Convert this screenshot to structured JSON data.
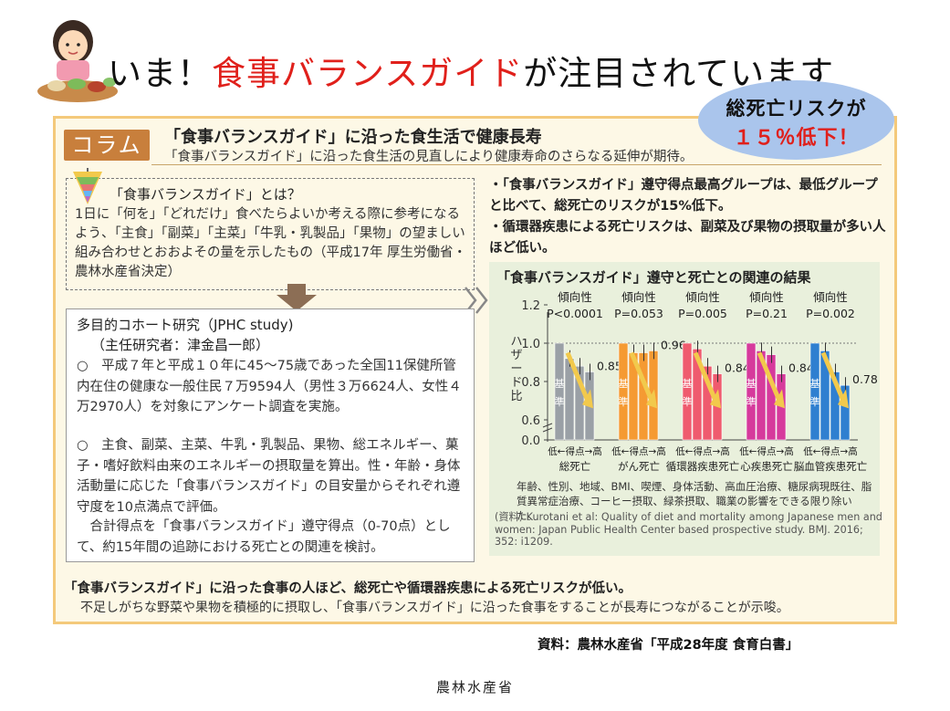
{
  "header": {
    "title_prefix": "いま！",
    "title_highlight": "食事バランスガイド",
    "title_suffix": "が注目されています"
  },
  "bubble": {
    "line1": "総死亡リスクが",
    "line2": "１５％低下！"
  },
  "column": {
    "tag": "コラム",
    "title": "「食事バランスガイド」に沿った食生活で健康長寿",
    "subtitle": "「食事バランスガイド」に沿った食生活の見直しにより健康寿命のさらなる延伸が期待。"
  },
  "definition": {
    "heading": "「食事バランスガイド」とは？",
    "text": "1日に「何を」「どれだけ」食べたらよいか考える際に参考になるよう、「主食」「副菜」「主菜」「牛乳・乳製品」「果物」の望ましい組み合わせとおおよその量を示したもの（平成17年 厚生労働省・農林水産省決定）"
  },
  "study": {
    "title": "多目的コホート研究（JPHC study)",
    "pi": "（主任研究者：津金昌一郎）",
    "p1": "○　平成７年と平成１０年に45～75歳であった全国11保健所管内在住の健康な一般住民７万9594人（男性３万6624人、女性４万2970人）を対象にアンケート調査を実施。",
    "p2": "○　主食、副菜、主菜、牛乳・乳製品、果物、総エネルギー、菓子・嗜好飲料由来のエネルギーの摂取量を算出。性・年齢・身体活動量に応じた「食事バランスガイド」の目安量からそれぞれ遵守度を10点満点で評価。",
    "p3": "　合計得点を「食事バランスガイド」遵守得点（0-70点）として、約15年間の追跡における死亡との関連を検討。"
  },
  "bullets": [
    "・「食事バランスガイド」遵守得点最高グループは、最低グループと比べて、総死亡のリスクが15%低下。",
    "・循環器疾患による死亡リスクは、副菜及び果物の摂取量が多い人ほど低い。"
  ],
  "chart_title": "「食事バランスガイド」遵守と死亡との関連の結果",
  "adjust_note": "年齢、性別、地域、BMI、喫煙、身体活動、高血圧治療、糖尿病現既往、脂質異常症治療、コーヒー摂取、緑茶摂取、職業の影響をできる限り除いた。",
  "source_note": "(資料) Kurotani et al: Quality of diet and mortality among Japanese men and women: Japan Public Health Center based prospective study. BMJ. 2016; 352: i1209.",
  "conclusion": {
    "heading": "「食事バランスガイド」に沿った食事の人ほど、総死亡や循環器疾患による死亡リスクが低い。",
    "text": "不足しがちな野菜や果物を積極的に摂取し、「食事バランスガイド」に沿った食事をすることが長寿につながることが示唆。"
  },
  "doc_source": "資料：農林水産省「平成28年度 食育白書」",
  "footer": "農林水産省",
  "chart_data": {
    "type": "bar",
    "ylabel": "ハザード比",
    "ylim": [
      0.0,
      1.2
    ],
    "yticks": [
      "0.0",
      "0.6",
      "0.8",
      "1.0",
      "1.2"
    ],
    "reference_line": 1.0,
    "baseline_label": "基準",
    "trend_label": "傾向性",
    "xtick_label": "低←得点→高",
    "groups": [
      {
        "name": "総死亡",
        "p_value": "P<0.0001",
        "color": "#9aa0a6",
        "values": [
          1.0,
          0.92,
          0.88,
          0.85
        ],
        "label": "0.85"
      },
      {
        "name": "がん死亡",
        "p_value": "P=0.053",
        "color": "#f59a32",
        "values": [
          1.0,
          0.95,
          0.95,
          0.96
        ],
        "label": "0.96"
      },
      {
        "name": "循環器疾患死亡",
        "p_value": "P=0.005",
        "color": "#ef5b6e",
        "values": [
          1.0,
          0.97,
          0.88,
          0.84
        ],
        "label": "0.84"
      },
      {
        "name": "心疾患死亡",
        "p_value": "P=0.21",
        "color": "#d63a9c",
        "values": [
          1.0,
          0.96,
          0.94,
          0.84
        ],
        "label": "0.84"
      },
      {
        "name": "脳血管疾患死亡",
        "p_value": "P=0.002",
        "color": "#2f7fd0",
        "values": [
          1.0,
          0.96,
          0.85,
          0.78
        ],
        "label": "0.78"
      }
    ]
  }
}
